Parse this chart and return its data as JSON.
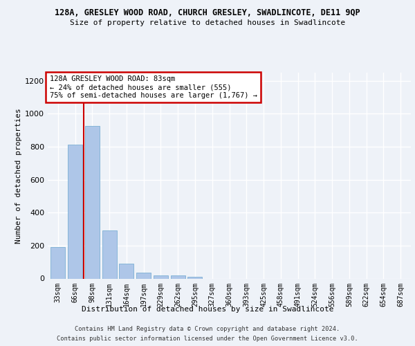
{
  "title_line1": "128A, GRESLEY WOOD ROAD, CHURCH GRESLEY, SWADLINCOTE, DE11 9QP",
  "title_line2": "Size of property relative to detached houses in Swadlincote",
  "xlabel": "Distribution of detached houses by size in Swadlincote",
  "ylabel": "Number of detached properties",
  "bar_labels": [
    "33sqm",
    "66sqm",
    "98sqm",
    "131sqm",
    "164sqm",
    "197sqm",
    "229sqm",
    "262sqm",
    "295sqm",
    "327sqm",
    "360sqm",
    "393sqm",
    "425sqm",
    "458sqm",
    "491sqm",
    "524sqm",
    "556sqm",
    "589sqm",
    "622sqm",
    "654sqm",
    "687sqm"
  ],
  "bar_values": [
    190,
    815,
    925,
    290,
    90,
    35,
    20,
    18,
    12,
    0,
    0,
    0,
    0,
    0,
    0,
    0,
    0,
    0,
    0,
    0,
    0
  ],
  "bar_color": "#aec6e8",
  "bar_edge_color": "#7bafd4",
  "vline_color": "#cc0000",
  "ylim": [
    0,
    1250
  ],
  "yticks": [
    0,
    200,
    400,
    600,
    800,
    1000,
    1200
  ],
  "annotation_text": "128A GRESLEY WOOD ROAD: 83sqm\n← 24% of detached houses are smaller (555)\n75% of semi-detached houses are larger (1,767) →",
  "annotation_box_color": "#ffffff",
  "annotation_box_edge": "#cc0000",
  "footer_line1": "Contains HM Land Registry data © Crown copyright and database right 2024.",
  "footer_line2": "Contains public sector information licensed under the Open Government Licence v3.0.",
  "bg_color": "#eef2f8",
  "plot_bg_color": "#eef2f8",
  "grid_color": "#ffffff"
}
